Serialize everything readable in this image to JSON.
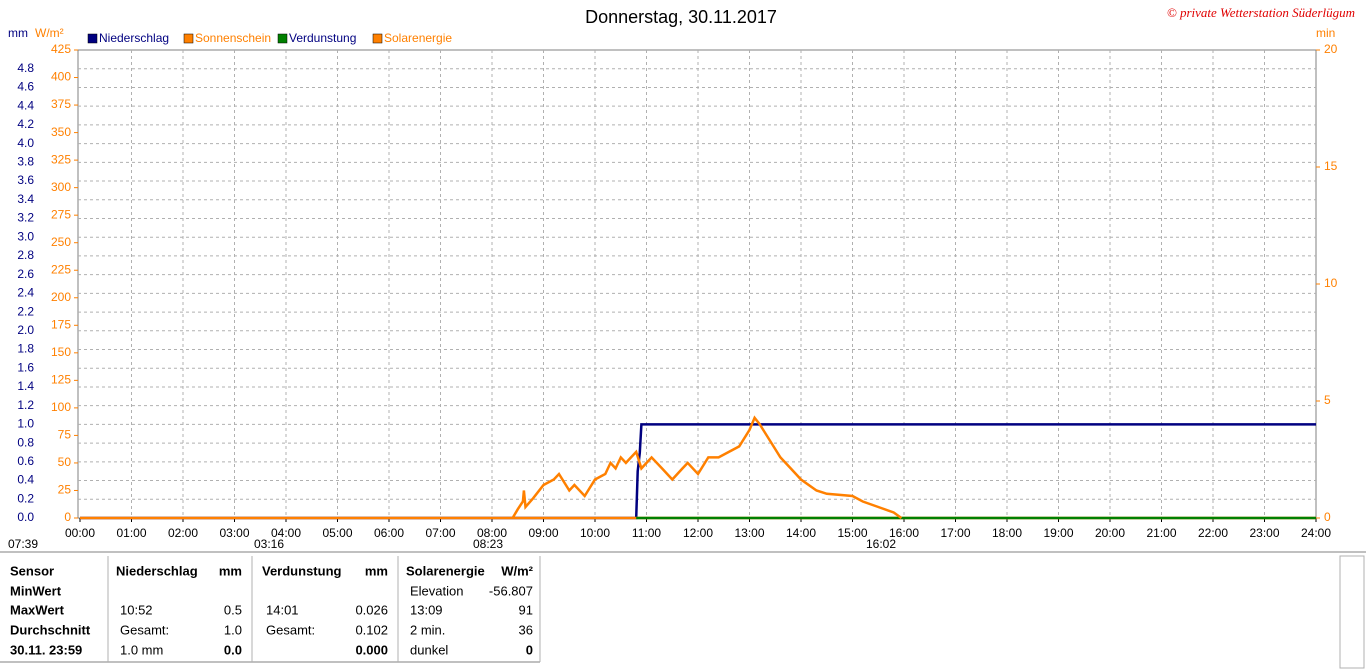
{
  "chart_data": {
    "type": "line",
    "title": "Donnerstag, 30.11.2017",
    "credit": "© private Wetterstation Süderlügum",
    "y_unit": "mm",
    "y3_unit": "W/m²",
    "y2_unit": "min",
    "xlim": [
      0,
      24
    ],
    "xticks": [
      {
        "value": 0,
        "label": "00:00"
      },
      {
        "value": 1,
        "label": "01:00"
      },
      {
        "value": 2,
        "label": "02:00"
      },
      {
        "value": 3,
        "label": "03:00"
      },
      {
        "value": 4,
        "label": "04:00"
      },
      {
        "value": 5,
        "label": "05:00"
      },
      {
        "value": 6,
        "label": "06:00"
      },
      {
        "value": 7,
        "label": "07:00"
      },
      {
        "value": 8,
        "label": "08:00"
      },
      {
        "value": 9,
        "label": "09:00"
      },
      {
        "value": 10,
        "label": "10:00"
      },
      {
        "value": 11,
        "label": "11:00"
      },
      {
        "value": 12,
        "label": "12:00"
      },
      {
        "value": 13,
        "label": "13:00"
      },
      {
        "value": 14,
        "label": "14:00"
      },
      {
        "value": 15,
        "label": "15:00"
      },
      {
        "value": 16,
        "label": "16:00"
      },
      {
        "value": 17,
        "label": "17:00"
      },
      {
        "value": 18,
        "label": "18:00"
      },
      {
        "value": 19,
        "label": "19:00"
      },
      {
        "value": 20,
        "label": "20:00"
      },
      {
        "value": 21,
        "label": "21:00"
      },
      {
        "value": 22,
        "label": "22:00"
      },
      {
        "value": 23,
        "label": "23:00"
      },
      {
        "value": 24,
        "label": "24:00"
      }
    ],
    "ylim": [
      0,
      5
    ],
    "yticks": [
      {
        "value": 0,
        "label": "0.0"
      },
      {
        "value": 0.2,
        "label": "0.2"
      },
      {
        "value": 0.4,
        "label": "0.4"
      },
      {
        "value": 0.6,
        "label": "0.6"
      },
      {
        "value": 0.8,
        "label": "0.8"
      },
      {
        "value": 1,
        "label": "1.0"
      },
      {
        "value": 1.2,
        "label": "1.2"
      },
      {
        "value": 1.4,
        "label": "1.4"
      },
      {
        "value": 1.6,
        "label": "1.6"
      },
      {
        "value": 1.8,
        "label": "1.8"
      },
      {
        "value": 2,
        "label": "2.0"
      },
      {
        "value": 2.2,
        "label": "2.2"
      },
      {
        "value": 2.4,
        "label": "2.4"
      },
      {
        "value": 2.6,
        "label": "2.6"
      },
      {
        "value": 2.8,
        "label": "2.8"
      },
      {
        "value": 3,
        "label": "3.0"
      },
      {
        "value": 3.2,
        "label": "3.2"
      },
      {
        "value": 3.4,
        "label": "3.4"
      },
      {
        "value": 3.6,
        "label": "3.6"
      },
      {
        "value": 3.8,
        "label": "3.8"
      },
      {
        "value": 4,
        "label": "4.0"
      },
      {
        "value": 4.2,
        "label": "4.2"
      },
      {
        "value": 4.4,
        "label": "4.4"
      },
      {
        "value": 4.6,
        "label": "4.6"
      },
      {
        "value": 4.8,
        "label": "4.8"
      }
    ],
    "y3lim": [
      0,
      425
    ],
    "y3ticks": [
      0,
      25,
      50,
      75,
      100,
      125,
      150,
      175,
      200,
      225,
      250,
      275,
      300,
      325,
      350,
      375,
      400,
      425
    ],
    "y2lim": [
      0,
      20
    ],
    "y2ticks": [
      0,
      5,
      10,
      15,
      20
    ],
    "grid": true,
    "series": [
      {
        "name": "Niederschlag",
        "color": "#000080",
        "axis": "y",
        "x": [
          0,
          10.8,
          10.83,
          10.87,
          10.9,
          24
        ],
        "values": [
          0,
          0,
          0.5,
          0.7,
          1.0,
          1.0
        ]
      },
      {
        "name": "Sonnenschein",
        "color": "#ff8000",
        "axis": "y2",
        "x": [
          0,
          24
        ],
        "values": [
          0,
          0
        ]
      },
      {
        "name": "Verdunstung",
        "color": "#008000",
        "axis": "y",
        "x": [
          10.8,
          24
        ],
        "values": [
          0,
          0
        ]
      },
      {
        "name": "Solarenergie",
        "color": "#ff8000",
        "axis": "y3",
        "x": [
          8.4,
          8.5,
          8.6,
          8.62,
          8.65,
          8.8,
          9.0,
          9.2,
          9.3,
          9.5,
          9.6,
          9.8,
          10.0,
          10.2,
          10.3,
          10.4,
          10.5,
          10.6,
          10.7,
          10.8,
          10.9,
          11.0,
          11.1,
          11.3,
          11.5,
          11.7,
          11.8,
          12.0,
          12.2,
          12.4,
          12.6,
          12.8,
          13.0,
          13.1,
          13.2,
          13.4,
          13.6,
          13.8,
          14.0,
          14.3,
          14.5,
          15.0,
          15.2,
          15.5,
          15.8,
          15.95
        ],
        "values": [
          0,
          8,
          15,
          25,
          10,
          18,
          30,
          35,
          40,
          25,
          30,
          20,
          35,
          40,
          50,
          45,
          55,
          50,
          55,
          60,
          45,
          50,
          55,
          45,
          35,
          45,
          50,
          40,
          55,
          55,
          60,
          65,
          80,
          91,
          85,
          70,
          55,
          45,
          35,
          25,
          22,
          20,
          15,
          10,
          5,
          0
        ]
      }
    ],
    "annotations": [
      "07:39",
      "03:16",
      "08:23",
      "16:02"
    ]
  },
  "table": {
    "columns": [
      {
        "header": "Sensor",
        "entries": [
          {
            "text": "MinWert"
          },
          {
            "text": "MaxWert"
          },
          {
            "text": "Durchschnitt"
          },
          {
            "text": "30.11. 23:59"
          }
        ]
      },
      {
        "header": "Niederschlag",
        "unit": "mm",
        "entries": [
          {
            "text": "10:52",
            "value": "0.5"
          },
          {
            "text": "Gesamt:",
            "value": "1.0"
          },
          {
            "text": "1.0 mm",
            "value": "0.0"
          }
        ]
      },
      {
        "header": "Verdunstung",
        "unit": "mm",
        "entries": [
          {
            "text": "14:01",
            "value": "0.026"
          },
          {
            "text": "Gesamt:",
            "value": "0.102"
          },
          {
            "value": "0.000"
          }
        ]
      },
      {
        "header": "Solarenergie",
        "unit": "W/m²",
        "entries": [
          {
            "text": "Elevation",
            "value": "-56.807"
          },
          {
            "text": "13:09",
            "value": "91"
          },
          {
            "text": "2 min.",
            "value": "36"
          },
          {
            "text": "dunkel",
            "value": "0"
          }
        ]
      }
    ]
  }
}
